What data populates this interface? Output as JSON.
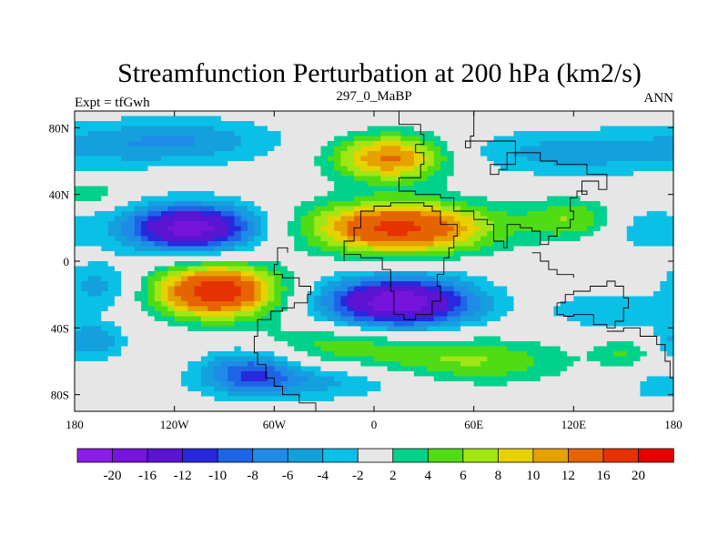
{
  "chart_data": {
    "type": "heatmap",
    "title": "Streamfunction Perturbation at 200 hPa (km2/s)",
    "left_label": "Expt = tfGwh",
    "center_label": "297_0_MaBP",
    "right_label": "ANN",
    "xlim": [
      -180,
      180
    ],
    "ylim": [
      -90,
      90
    ],
    "x_ticks": [
      {
        "value": -180,
        "label": "180"
      },
      {
        "value": -120,
        "label": "120W"
      },
      {
        "value": -60,
        "label": "60W"
      },
      {
        "value": 0,
        "label": "0"
      },
      {
        "value": 60,
        "label": "60E"
      },
      {
        "value": 120,
        "label": "120E"
      },
      {
        "value": 180,
        "label": "180"
      }
    ],
    "y_ticks": [
      {
        "value": 80,
        "label": "80N"
      },
      {
        "value": 40,
        "label": "40N"
      },
      {
        "value": 0,
        "label": "0"
      },
      {
        "value": -40,
        "label": "40S"
      },
      {
        "value": -80,
        "label": "80S"
      }
    ],
    "contour_levels": [
      -20,
      -16,
      -12,
      -10,
      -8,
      -6,
      -4,
      -2,
      2,
      4,
      6,
      8,
      10,
      12,
      16,
      20
    ],
    "level_labels": [
      "-20",
      "-16",
      "-12",
      "-10",
      "-8",
      "-6",
      "-4",
      "-2",
      "2",
      "4",
      "6",
      "8",
      "10",
      "12",
      "16",
      "20"
    ],
    "colors": [
      "#8a1ee6",
      "#7614dc",
      "#5a14d2",
      "#2828dc",
      "#1e64e6",
      "#1e8ce6",
      "#14a0dc",
      "#0ac0e6",
      "#e6e6e6",
      "#00d28c",
      "#50dc14",
      "#a0e614",
      "#e6d200",
      "#e6a000",
      "#e66400",
      "#e63200",
      "#e60000"
    ],
    "features": [
      {
        "lon": -110,
        "lat": 20,
        "amp": -18,
        "sx": 28,
        "sy": 10
      },
      {
        "lon": -95,
        "lat": -18,
        "amp": 19,
        "sx": 26,
        "sy": 11
      },
      {
        "lon": 15,
        "lat": 20,
        "amp": 17,
        "sx": 38,
        "sy": 11
      },
      {
        "lon": 15,
        "lat": -25,
        "amp": -19,
        "sx": 32,
        "sy": 11
      },
      {
        "lon": 10,
        "lat": 62,
        "amp": 13,
        "sx": 25,
        "sy": 10
      },
      {
        "lon": -120,
        "lat": 72,
        "amp": -6,
        "sx": 45,
        "sy": 10
      },
      {
        "lon": 120,
        "lat": 65,
        "amp": -5,
        "sx": 55,
        "sy": 10
      },
      {
        "lon": -170,
        "lat": 40,
        "amp": 4,
        "sx": 12,
        "sy": 5
      },
      {
        "lon": 120,
        "lat": 25,
        "amp": 6,
        "sx": 22,
        "sy": 9
      },
      {
        "lon": 160,
        "lat": 20,
        "amp": -4,
        "sx": 20,
        "sy": 10
      },
      {
        "lon": -165,
        "lat": -15,
        "amp": -5,
        "sx": 16,
        "sy": 10
      },
      {
        "lon": 140,
        "lat": -30,
        "amp": -4,
        "sx": 25,
        "sy": 8
      },
      {
        "lon": -20,
        "lat": -50,
        "amp": 5,
        "sx": 40,
        "sy": 10
      },
      {
        "lon": 60,
        "lat": -60,
        "amp": 6,
        "sx": 40,
        "sy": 10
      },
      {
        "lon": -75,
        "lat": -65,
        "amp": -8,
        "sx": 20,
        "sy": 10
      },
      {
        "lon": -170,
        "lat": -48,
        "amp": -6,
        "sx": 14,
        "sy": 8
      },
      {
        "lon": 150,
        "lat": -55,
        "amp": 4,
        "sx": 12,
        "sy": 6
      },
      {
        "lon": -40,
        "lat": -72,
        "amp": -5,
        "sx": 45,
        "sy": 8
      },
      {
        "lon": 170,
        "lat": -75,
        "amp": -4,
        "sx": 10,
        "sy": 6
      }
    ],
    "coastlines": [
      [
        [
          -35,
          -90
        ],
        [
          -35,
          -85
        ],
        [
          -45,
          -80
        ],
        [
          -55,
          -75
        ],
        [
          -60,
          -70
        ],
        [
          -65,
          -62
        ],
        [
          -70,
          -55
        ],
        [
          -72,
          -45
        ],
        [
          -70,
          -35
        ],
        [
          -62,
          -30
        ],
        [
          -55,
          -28
        ],
        [
          -48,
          -25
        ],
        [
          -40,
          -20
        ],
        [
          -38,
          -15
        ],
        [
          -45,
          -10
        ],
        [
          -55,
          -8
        ],
        [
          -60,
          -2
        ],
        [
          -58,
          8
        ],
        [
          -52,
          5
        ]
      ],
      [
        [
          -18,
          0
        ],
        [
          -18,
          12
        ],
        [
          -12,
          20
        ],
        [
          -8,
          30
        ],
        [
          0,
          33
        ],
        [
          10,
          35
        ],
        [
          30,
          33
        ],
        [
          35,
          30
        ],
        [
          40,
          22
        ],
        [
          50,
          15
        ],
        [
          48,
          8
        ],
        [
          45,
          2
        ],
        [
          42,
          -8
        ],
        [
          38,
          -15
        ],
        [
          40,
          -24
        ],
        [
          35,
          -32
        ],
        [
          25,
          -35
        ],
        [
          18,
          -32
        ],
        [
          12,
          -18
        ],
        [
          10,
          -5
        ],
        [
          5,
          2
        ],
        [
          -8,
          4
        ],
        [
          -18,
          0
        ]
      ],
      [
        [
          10,
          90
        ],
        [
          15,
          82
        ],
        [
          28,
          76
        ],
        [
          30,
          70
        ],
        [
          25,
          65
        ],
        [
          30,
          58
        ],
        [
          28,
          50
        ],
        [
          15,
          42
        ],
        [
          25,
          40
        ],
        [
          40,
          38
        ],
        [
          48,
          30
        ],
        [
          60,
          25
        ],
        [
          68,
          22
        ],
        [
          72,
          12
        ],
        [
          78,
          8
        ],
        [
          80,
          22
        ],
        [
          88,
          20
        ],
        [
          95,
          18
        ],
        [
          100,
          10
        ],
        [
          105,
          15
        ],
        [
          110,
          20
        ],
        [
          118,
          25
        ],
        [
          120,
          30
        ],
        [
          118,
          38
        ],
        [
          122,
          42
        ],
        [
          128,
          40
        ],
        [
          125,
          48
        ],
        [
          135,
          43
        ],
        [
          140,
          52
        ],
        [
          128,
          58
        ],
        [
          120,
          58
        ],
        [
          110,
          60
        ],
        [
          100,
          65
        ],
        [
          85,
          72
        ],
        [
          65,
          72
        ],
        [
          55,
          68
        ],
        [
          58,
          75
        ],
        [
          60,
          78
        ],
        [
          60,
          90
        ]
      ],
      [
        [
          85,
          65
        ],
        [
          80,
          55
        ],
        [
          75,
          52
        ],
        [
          70,
          58
        ],
        [
          85,
          65
        ]
      ],
      [
        [
          95,
          5
        ],
        [
          100,
          0
        ],
        [
          105,
          -5
        ],
        [
          110,
          -8
        ],
        [
          120,
          -10
        ]
      ],
      [
        [
          110,
          -25
        ],
        [
          115,
          -20
        ],
        [
          120,
          -18
        ],
        [
          130,
          -15
        ],
        [
          140,
          -12
        ],
        [
          145,
          -15
        ],
        [
          150,
          -22
        ],
        [
          153,
          -28
        ],
        [
          150,
          -36
        ],
        [
          145,
          -40
        ],
        [
          140,
          -38
        ],
        [
          132,
          -32
        ],
        [
          120,
          -33
        ],
        [
          114,
          -32
        ],
        [
          110,
          -25
        ]
      ],
      [
        [
          140,
          -42
        ],
        [
          150,
          -40
        ],
        [
          160,
          -45
        ],
        [
          170,
          -50
        ],
        [
          175,
          -60
        ],
        [
          178,
          -70
        ],
        [
          180,
          -75
        ]
      ]
    ]
  }
}
